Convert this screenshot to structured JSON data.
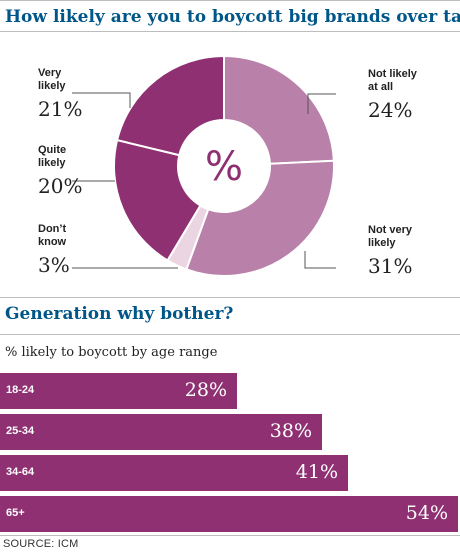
{
  "title": "How likely are you to boycott big brands over tax?",
  "pie_center": "%",
  "section2_title": "Generation why bother?",
  "bar_subtitle": "% likely to boycott by age range",
  "source": "SOURCE: ICM",
  "colors": {
    "heading": "#005689",
    "very_likely": "#8e3072",
    "quite_likely": "#8e3072",
    "dont_know": "#ecd5e2",
    "not_very_likely": "#b980aa",
    "not_likely_at_all": "#b980aa",
    "bar": "#8e3072"
  },
  "chart_data": [
    {
      "type": "pie",
      "title": "How likely are you to boycott big brands over tax?",
      "slices": [
        {
          "label": "Not likely at all",
          "value": 24
        },
        {
          "label": "Not very likely",
          "value": 31
        },
        {
          "label": "Don't know",
          "value": 3
        },
        {
          "label": "Quite likely",
          "value": 20
        },
        {
          "label": "Very likely",
          "value": 21
        }
      ]
    },
    {
      "type": "bar",
      "title": "Generation why bother?",
      "subtitle": "% likely to boycott by age range",
      "categories": [
        "18-24",
        "25-34",
        "34-64",
        "65+"
      ],
      "values": [
        28,
        38,
        41,
        54
      ],
      "value_labels": [
        "28%",
        "38%",
        "41%",
        "54%"
      ]
    }
  ]
}
